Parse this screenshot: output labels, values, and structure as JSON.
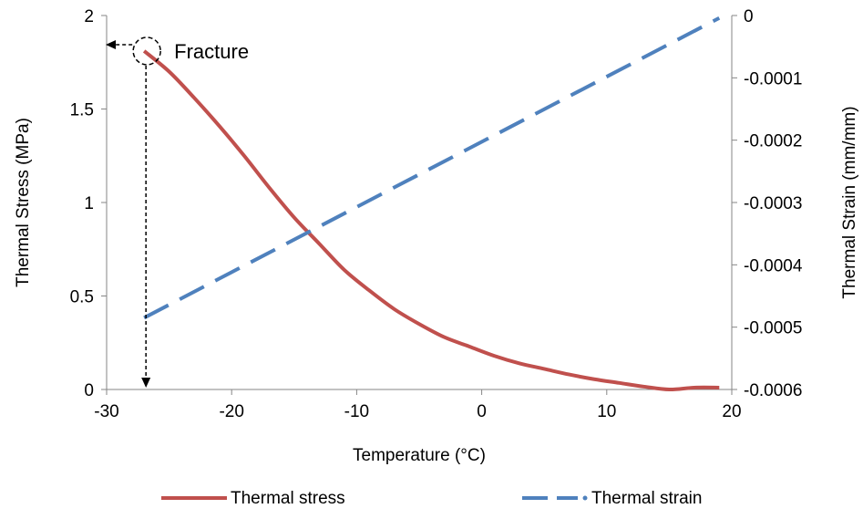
{
  "chart_data": {
    "type": "line",
    "title": "",
    "xlabel": "Temperature (°C)",
    "ylabel_left": "Thermal Stress (MPa)",
    "ylabel_right": "Thermal Strain (mm/mm)",
    "xlim": [
      -30,
      20
    ],
    "ylim_left": [
      0,
      2
    ],
    "ylim_right": [
      -0.0006,
      0
    ],
    "x_ticks": [
      -30,
      -20,
      -10,
      0,
      10,
      20
    ],
    "y_ticks_left": [
      0,
      0.5,
      1,
      1.5,
      2
    ],
    "y_ticks_right": [
      -0.0006,
      -0.0005,
      -0.0004,
      -0.0003,
      -0.0002,
      -0.0001,
      0
    ],
    "x_tick_labels": [
      "-30",
      "-20",
      "-10",
      "0",
      "10",
      "20"
    ],
    "y_tick_labels_left": [
      "0",
      "0.5",
      "1",
      "1.5",
      "2"
    ],
    "y_tick_labels_right": [
      "-0.0006",
      "-0.0005",
      "-0.0004",
      "-0.0003",
      "-0.0002",
      "-0.0001",
      "0"
    ],
    "grid": false,
    "legend_position": "bottom",
    "series": [
      {
        "name": "Thermal stress",
        "axis": "left",
        "style": "solid",
        "color": "#c0504d",
        "x": [
          -27,
          -25,
          -23,
          -21,
          -19,
          -17,
          -15,
          -13,
          -11,
          -9,
          -7,
          -5,
          -3,
          -1,
          1,
          3,
          5,
          7,
          9,
          11,
          13,
          15,
          17,
          19
        ],
        "y": [
          1.81,
          1.7,
          1.56,
          1.41,
          1.25,
          1.08,
          0.92,
          0.78,
          0.64,
          0.53,
          0.43,
          0.35,
          0.28,
          0.23,
          0.18,
          0.14,
          0.11,
          0.08,
          0.055,
          0.035,
          0.015,
          0.0,
          0.01,
          0.01
        ]
      },
      {
        "name": "Thermal strain",
        "axis": "right",
        "style": "dashed",
        "color": "#4f81bd",
        "x": [
          -27,
          19
        ],
        "y": [
          -0.000485,
          -4e-06
        ]
      }
    ],
    "annotations": [
      {
        "text": "Fracture",
        "x": -27,
        "y": 1.81
      }
    ]
  }
}
